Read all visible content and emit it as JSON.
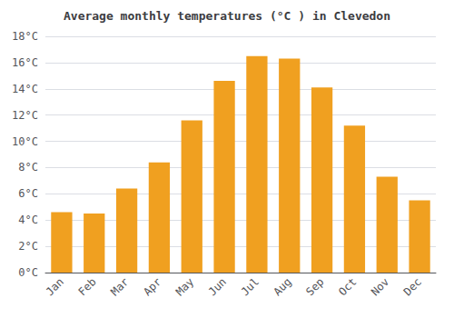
{
  "chart_data": {
    "type": "bar",
    "title": "Average monthly temperatures (°C ) in Clevedon",
    "categories": [
      "Jan",
      "Feb",
      "Mar",
      "Apr",
      "May",
      "Jun",
      "Jul",
      "Aug",
      "Sep",
      "Oct",
      "Nov",
      "Dec"
    ],
    "values": [
      4.6,
      4.5,
      6.4,
      8.4,
      11.6,
      14.6,
      16.5,
      16.3,
      14.1,
      11.2,
      7.3,
      5.5
    ],
    "color": "#F0A020",
    "ylim": [
      0,
      18
    ],
    "yticks": [
      {
        "value": 0,
        "label": "0°C"
      },
      {
        "value": 2,
        "label": "2°C"
      },
      {
        "value": 4,
        "label": "4°C"
      },
      {
        "value": 6,
        "label": "6°C"
      },
      {
        "value": 8,
        "label": "8°C"
      },
      {
        "value": 10,
        "label": "10°C"
      },
      {
        "value": 12,
        "label": "12°C"
      },
      {
        "value": 14,
        "label": "14°C"
      },
      {
        "value": 16,
        "label": "16°C"
      },
      {
        "value": 18,
        "label": "18°C"
      }
    ],
    "grid": true
  }
}
